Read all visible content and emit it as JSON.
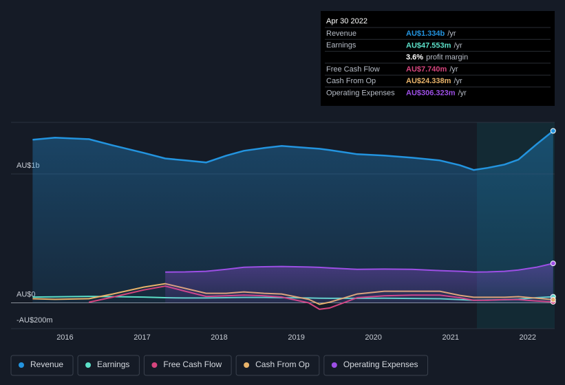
{
  "chart_data": {
    "type": "line",
    "x": [
      2015.58,
      2015.87,
      2016.31,
      2016.62,
      2017.02,
      2017.3,
      2017.56,
      2017.83,
      2018.09,
      2018.32,
      2018.58,
      2018.81,
      2019.16,
      2019.3,
      2019.43,
      2019.79,
      2020.14,
      2020.5,
      2020.86,
      2021.12,
      2021.3,
      2021.48,
      2021.7,
      2021.88,
      2022.11,
      2022.33
    ],
    "xlim": [
      2015.3,
      2022.35
    ],
    "xticks": [
      2016,
      2017,
      2018,
      2019,
      2020,
      2021,
      2022
    ],
    "ylim": [
      -200,
      1400
    ],
    "yticks": [
      {
        "value": -200,
        "label": "-AU$200m"
      },
      {
        "value": 0,
        "label": "AU$0"
      },
      {
        "value": 1000,
        "label": "AU$1b"
      }
    ],
    "series": [
      {
        "name": "Revenue",
        "color": "#2394df",
        "fill": true,
        "values": [
          1265,
          1281,
          1270,
          1222,
          1164,
          1120,
          1105,
          1089,
          1142,
          1180,
          1201,
          1217,
          1201,
          1195,
          1185,
          1153,
          1143,
          1126,
          1105,
          1068,
          1031,
          1047,
          1073,
          1111,
          1228,
          1334
        ]
      },
      {
        "name": "Earnings",
        "color": "#5ce0c8",
        "fill": false,
        "values": [
          45,
          47,
          50,
          48,
          45,
          40,
          38,
          38,
          40,
          42,
          42,
          40,
          38,
          36,
          35,
          35,
          36,
          34,
          32,
          25,
          20,
          22,
          24,
          28,
          40,
          47.553
        ]
      },
      {
        "name": "Free Cash Flow",
        "color": "#d6457e",
        "fill": false,
        "values": [
          null,
          null,
          5,
          45,
          100,
          130,
          90,
          50,
          55,
          60,
          55,
          45,
          0,
          -50,
          -40,
          40,
          55,
          60,
          60,
          40,
          20,
          20,
          25,
          25,
          15,
          7.74
        ]
      },
      {
        "name": "Cash From Op",
        "color": "#e8b36a",
        "fill": false,
        "values": [
          32,
          27,
          32,
          69,
          122,
          149,
          112,
          74,
          74,
          85,
          74,
          69,
          27,
          -11,
          5,
          69,
          90,
          90,
          90,
          58,
          43,
          43,
          43,
          48,
          37,
          24.338
        ]
      },
      {
        "name": "Operating Expenses",
        "color": "#9d4fe6",
        "fill": true,
        "values": [
          null,
          null,
          null,
          null,
          null,
          239,
          240,
          245,
          260,
          276,
          280,
          282,
          278,
          275,
          271,
          260,
          262,
          260,
          250,
          245,
          239,
          240,
          245,
          255,
          276,
          306.323
        ]
      }
    ]
  },
  "tooltip": {
    "date": "Apr 30 2022",
    "rows": [
      {
        "label": "Revenue",
        "value": "AU$1.334b",
        "suffix": "/yr",
        "color": "#2394df"
      },
      {
        "label": "Earnings",
        "value": "AU$47.553m",
        "suffix": "/yr",
        "color": "#5ce0c8"
      },
      {
        "label": "",
        "value": "3.6%",
        "suffix": "profit margin",
        "color": "#ffffff"
      },
      {
        "label": "Free Cash Flow",
        "value": "AU$7.740m",
        "suffix": "/yr",
        "color": "#d6457e"
      },
      {
        "label": "Cash From Op",
        "value": "AU$24.338m",
        "suffix": "/yr",
        "color": "#e8b36a"
      },
      {
        "label": "Operating Expenses",
        "value": "AU$306.323m",
        "suffix": "/yr",
        "color": "#9d4fe6"
      }
    ]
  }
}
